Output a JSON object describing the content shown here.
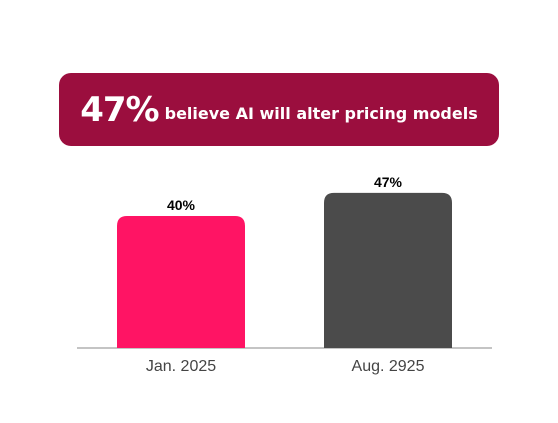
{
  "banner": {
    "highlight": "47%",
    "text": "believe AI will alter pricing models",
    "color": "#9b0e3e"
  },
  "chart_data": {
    "type": "bar",
    "categories": [
      "Jan. 2025",
      "Aug. 2925"
    ],
    "values": [
      40,
      47
    ],
    "data_labels": [
      "40%",
      "47%"
    ],
    "colors": [
      "#ff1464",
      "#4b4b4b"
    ],
    "ylim": [
      0,
      50
    ],
    "grid": false,
    "legend": "none"
  }
}
